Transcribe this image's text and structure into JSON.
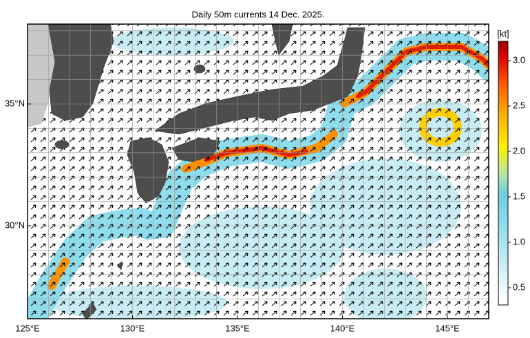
{
  "title": "Daily 50m currents 14 Dec. 2025.",
  "lon_labels": [
    {
      "value": 125,
      "label": "125°E"
    },
    {
      "value": 130,
      "label": "130°E"
    },
    {
      "value": 135,
      "label": "135°E"
    },
    {
      "value": 140,
      "label": "140°E"
    },
    {
      "value": 145,
      "label": "145°E"
    }
  ],
  "lat_labels": [
    {
      "value": 35,
      "label": "35°N"
    },
    {
      "value": 30,
      "label": "30°N"
    }
  ],
  "colorbar": {
    "unit": "[kt]",
    "ticks": [
      0.5,
      {
        "value": 1,
        "label": "1.0"
      },
      1.5,
      {
        "value": 2,
        "label": "2.0"
      },
      2.5,
      {
        "value": 3,
        "label": "3.0"
      }
    ]
  }
}
